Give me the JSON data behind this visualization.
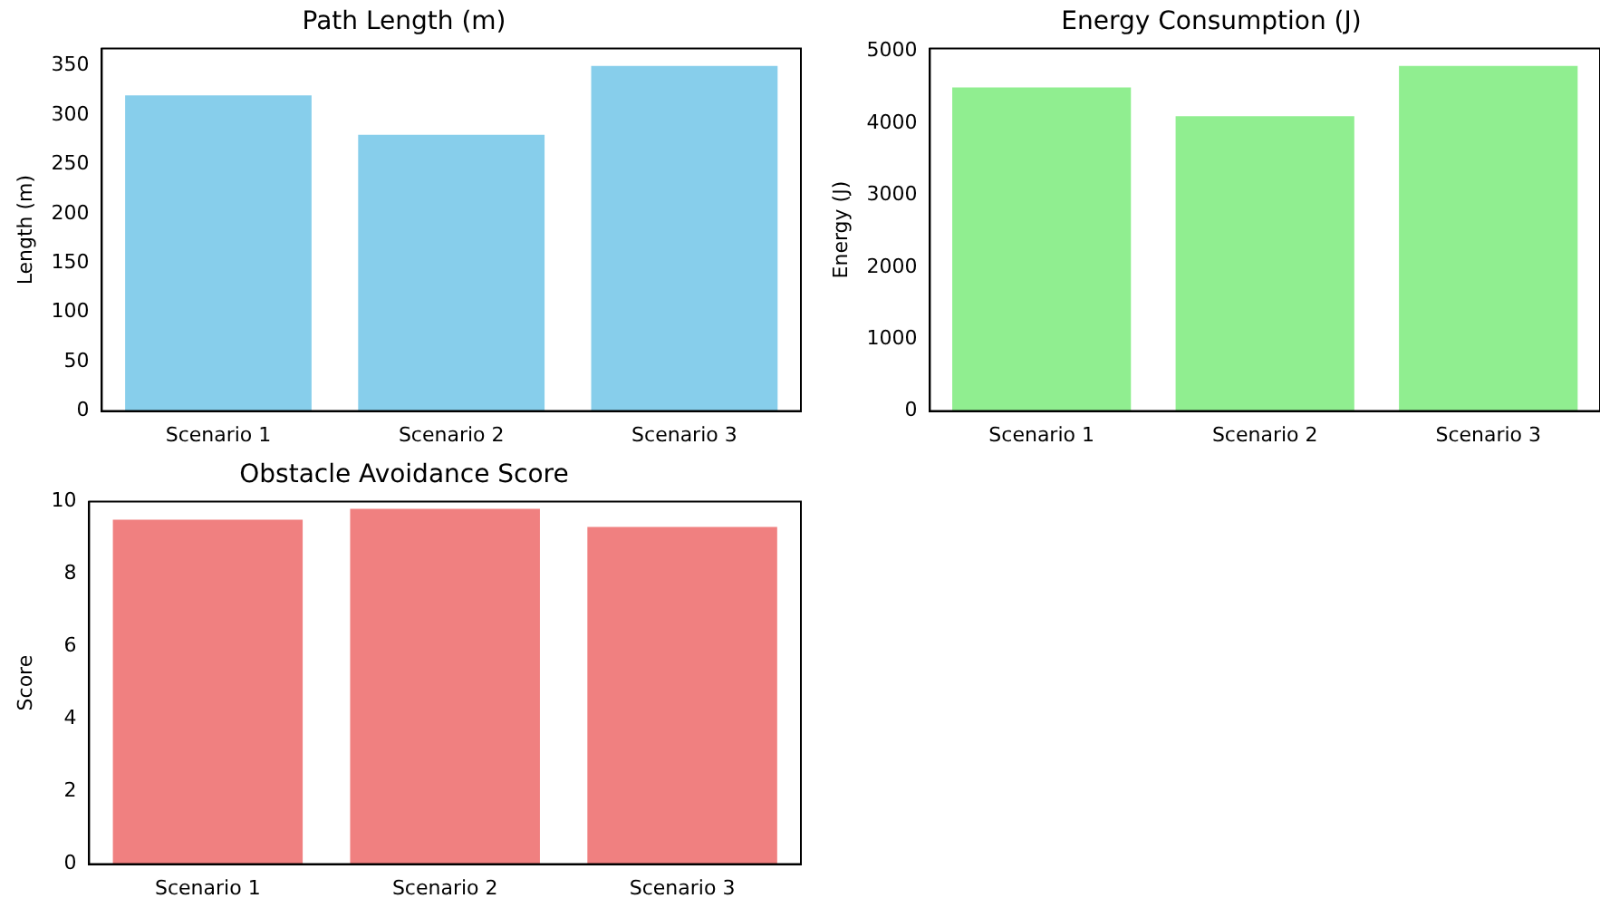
{
  "chart_data": [
    {
      "type": "bar",
      "title": "Path Length (m)",
      "ylabel": "Length (m)",
      "categories": [
        "Scenario 1",
        "Scenario 2",
        "Scenario 3"
      ],
      "values": [
        320,
        280,
        350
      ],
      "color": "#87ceeb",
      "ylim": [
        0,
        367.5
      ],
      "yticks": [
        0,
        50,
        100,
        150,
        200,
        250,
        300,
        350
      ],
      "grid": false
    },
    {
      "type": "bar",
      "title": "Energy Consumption (J)",
      "ylabel": "Energy (J)",
      "categories": [
        "Scenario 1",
        "Scenario 2",
        "Scenario 3"
      ],
      "values": [
        4500,
        4100,
        4800
      ],
      "color": "#90ee90",
      "ylim": [
        0,
        5040
      ],
      "yticks": [
        0,
        1000,
        2000,
        3000,
        4000,
        5000
      ],
      "grid": false
    },
    {
      "type": "bar",
      "title": "Obstacle Avoidance Score",
      "ylabel": "Score",
      "categories": [
        "Scenario 1",
        "Scenario 2",
        "Scenario 3"
      ],
      "values": [
        9.5,
        9.8,
        9.3
      ],
      "color": "#f08080",
      "ylim": [
        0,
        10
      ],
      "yticks": [
        0,
        2,
        4,
        6,
        8,
        10
      ],
      "grid": false
    }
  ]
}
